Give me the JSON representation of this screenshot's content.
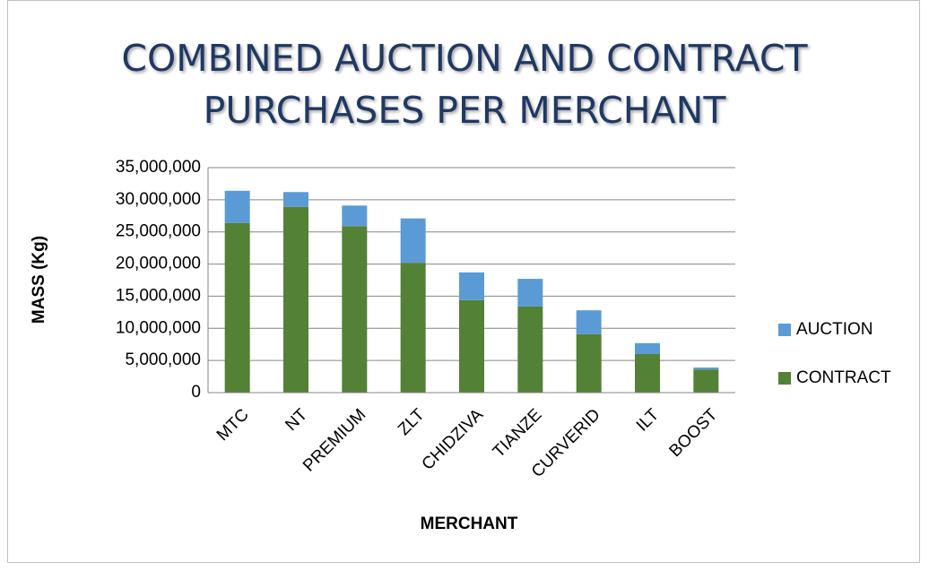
{
  "chart_data": {
    "type": "stacked-bar",
    "title": "COMBINED AUCTION AND CONTRACT PURCHASES PER MERCHANT",
    "x_label": "MERCHANT",
    "y_label": "MASS (Kg)",
    "categories": [
      "MTC",
      "NT",
      "PREMIUM",
      "ZLT",
      "CHIDZIVA",
      "TIANZE",
      "CURVERID",
      "ILT",
      "BOOST"
    ],
    "series": [
      {
        "name": "CONTRACT",
        "color": "#538135",
        "values": [
          26400000,
          28900000,
          25900000,
          20200000,
          14400000,
          13400000,
          9100000,
          6000000,
          3600000
        ]
      },
      {
        "name": "AUCTION",
        "color": "#5b9bd5",
        "values": [
          5000000,
          2300000,
          3200000,
          6900000,
          4300000,
          4300000,
          3700000,
          1700000,
          300000
        ]
      }
    ],
    "ylim": [
      0,
      35000000
    ],
    "yticks": [
      0,
      {
        "value": 5000000,
        "label": "5,000,000"
      },
      {
        "value": 10000000,
        "label": "10,000,000"
      },
      {
        "value": 15000000,
        "label": "15,000,000"
      },
      {
        "value": 20000000,
        "label": "20,000,000"
      },
      {
        "value": 25000000,
        "label": "25,000,000"
      },
      {
        "value": 30000000,
        "label": "30,000,000"
      },
      {
        "value": 35000000,
        "label": "35,000,000"
      }
    ],
    "grid": true,
    "legend": "right"
  }
}
